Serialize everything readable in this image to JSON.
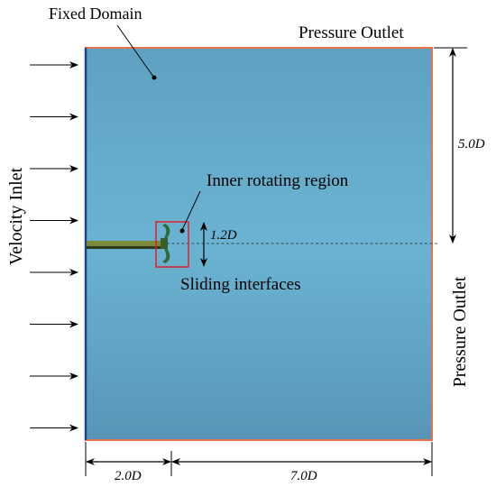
{
  "labels": {
    "fixed_domain": "Fixed Domain",
    "pressure_outlet_top": "Pressure Outlet",
    "pressure_outlet_right": "Pressure Outlet",
    "velocity_inlet": "Velocity Inlet",
    "inner_rotating_region": "Inner rotating region",
    "sliding_interfaces": "Sliding interfaces"
  },
  "dimensions": {
    "height_half": "5.0D",
    "rotor_region": "1.2D",
    "upstream": "2.0D",
    "downstream": "7.0D"
  },
  "colors": {
    "domain_top": "#5ea1c1",
    "domain_mid": "#6bb3d2",
    "domain_bottom": "#5896b6",
    "outlet_border": "#e8734a",
    "inlet_border": "#1f3f9e",
    "interface_box": "#e0202a",
    "shaft": "#7a8a3a",
    "blade": "#2f6b3a"
  },
  "inlet_arrow_count": 8
}
